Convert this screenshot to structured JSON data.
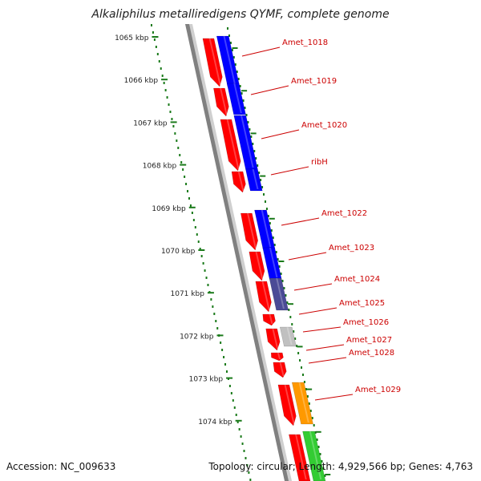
{
  "title": "Alkaliphilus metalliredigens QYMF, complete genome",
  "footer": {
    "accession": "Accession: NC_009633",
    "summary": "Topology: circular; Length: 4,929,566 bp; Genes: 4,763"
  },
  "colors": {
    "forward_gene": "#ff0000",
    "forward_cds": "#0000ff",
    "forward_cds_dark": "#4a4a96",
    "forward_other": "#c0c0c0",
    "forward_orange": "#ff9900",
    "forward_green": "#33cc33",
    "backbone": "#808080",
    "ruler": "#1a7a1a",
    "label": "#cc0000"
  },
  "ruler_labels": [
    "1065 kbp",
    "1066 kbp",
    "1067 kbp",
    "1068 kbp",
    "1069 kbp",
    "1070 kbp",
    "1071 kbp",
    "1072 kbp",
    "1073 kbp",
    "1074 kbp"
  ],
  "gene_labels": [
    "Amet_1018",
    "Amet_1019",
    "Amet_1020",
    "ribH",
    "Amet_1022",
    "Amet_1023",
    "Amet_1024",
    "Amet_1025",
    "Amet_1026",
    "Amet_1027",
    "Amet_1028",
    "Amet_1029"
  ]
}
